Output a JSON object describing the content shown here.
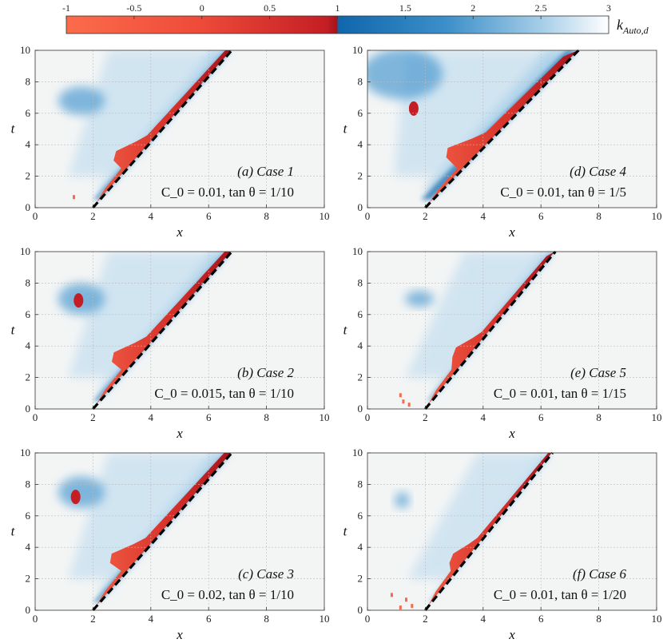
{
  "colorbar": {
    "label": "k_{Auto,d}",
    "label_main": "k",
    "label_sub": "Auto,d",
    "ticks": [
      "-1",
      "-0.5",
      "0",
      "0.5",
      "1",
      "1.5",
      "2",
      "2.5",
      "3"
    ],
    "range": [
      -1,
      3
    ],
    "colors": {
      "low": "#fa6a4a",
      "mid_red": "#d92e28",
      "dark_red": "#a3131b",
      "dark_blue": "#1067aa",
      "mid_blue": "#4a9ed0",
      "light": "#ffffff"
    }
  },
  "chart_data": [
    {
      "type": "heatmap",
      "id": "a",
      "annotation_line1": "(a) Case 1",
      "annotation_line2": "C_0 = 0.01, tan θ = 1/10",
      "c0": "0.01",
      "tan": "1/10",
      "xlabel": "x",
      "ylabel": "t",
      "xlim": [
        0,
        10
      ],
      "ylim": [
        0,
        10
      ],
      "xticks": [
        "0",
        "2",
        "4",
        "6",
        "8",
        "10"
      ],
      "yticks": [
        "0",
        "2",
        "4",
        "6",
        "8",
        "10"
      ],
      "front_line": {
        "x": [
          2.0,
          6.8
        ],
        "t": [
          0,
          10
        ]
      },
      "grid": true
    },
    {
      "type": "heatmap",
      "id": "d",
      "annotation_line1": "(d) Case 4",
      "annotation_line2": "C_0 = 0.01, tan θ = 1/5",
      "c0": "0.01",
      "tan": "1/5",
      "xlabel": "x",
      "ylabel": "t",
      "xlim": [
        0,
        10
      ],
      "ylim": [
        0,
        10
      ],
      "xticks": [
        "0",
        "2",
        "4",
        "6",
        "8",
        "10"
      ],
      "yticks": [
        "0",
        "2",
        "4",
        "6",
        "8",
        "10"
      ],
      "front_line": {
        "x": [
          2.0,
          7.3
        ],
        "t": [
          0,
          10
        ]
      },
      "grid": true
    },
    {
      "type": "heatmap",
      "id": "b",
      "annotation_line1": "(b) Case 2",
      "annotation_line2": "C_0 = 0.015, tan θ = 1/10",
      "c0": "0.015",
      "tan": "1/10",
      "xlabel": "x",
      "ylabel": "t",
      "xlim": [
        0,
        10
      ],
      "ylim": [
        0,
        10
      ],
      "xticks": [
        "0",
        "2",
        "4",
        "6",
        "8",
        "10"
      ],
      "yticks": [
        "0",
        "2",
        "4",
        "6",
        "8",
        "10"
      ],
      "front_line": {
        "x": [
          2.0,
          6.8
        ],
        "t": [
          0,
          10
        ]
      },
      "grid": true
    },
    {
      "type": "heatmap",
      "id": "e",
      "annotation_line1": "(e) Case 5",
      "annotation_line2": "C_0 = 0.01, tan θ = 1/15",
      "c0": "0.01",
      "tan": "1/15",
      "xlabel": "x",
      "ylabel": "t",
      "xlim": [
        0,
        10
      ],
      "ylim": [
        0,
        10
      ],
      "xticks": [
        "0",
        "2",
        "4",
        "6",
        "8",
        "10"
      ],
      "yticks": [
        "0",
        "2",
        "4",
        "6",
        "8",
        "10"
      ],
      "front_line": {
        "x": [
          2.0,
          6.5
        ],
        "t": [
          0,
          10
        ]
      },
      "grid": true
    },
    {
      "type": "heatmap",
      "id": "c",
      "annotation_line1": "(c) Case 3",
      "annotation_line2": "C_0 = 0.02, tan θ = 1/10",
      "c0": "0.02",
      "tan": "1/10",
      "xlabel": "x",
      "ylabel": "t",
      "xlim": [
        0,
        10
      ],
      "ylim": [
        0,
        10
      ],
      "xticks": [
        "0",
        "2",
        "4",
        "6",
        "8",
        "10"
      ],
      "yticks": [
        "0",
        "2",
        "4",
        "6",
        "8",
        "10"
      ],
      "front_line": {
        "x": [
          2.0,
          6.8
        ],
        "t": [
          0,
          10
        ]
      },
      "grid": true
    },
    {
      "type": "heatmap",
      "id": "f",
      "annotation_line1": "(f) Case 6",
      "annotation_line2": "C_0 = 0.01, tan θ = 1/20",
      "c0": "0.01",
      "tan": "1/20",
      "xlabel": "x",
      "ylabel": "t",
      "xlim": [
        0,
        10
      ],
      "ylim": [
        0,
        10
      ],
      "xticks": [
        "0",
        "2",
        "4",
        "6",
        "8",
        "10"
      ],
      "yticks": [
        "0",
        "2",
        "4",
        "6",
        "8",
        "10"
      ],
      "front_line": {
        "x": [
          2.0,
          6.4
        ],
        "t": [
          0,
          10
        ]
      },
      "grid": true
    }
  ]
}
